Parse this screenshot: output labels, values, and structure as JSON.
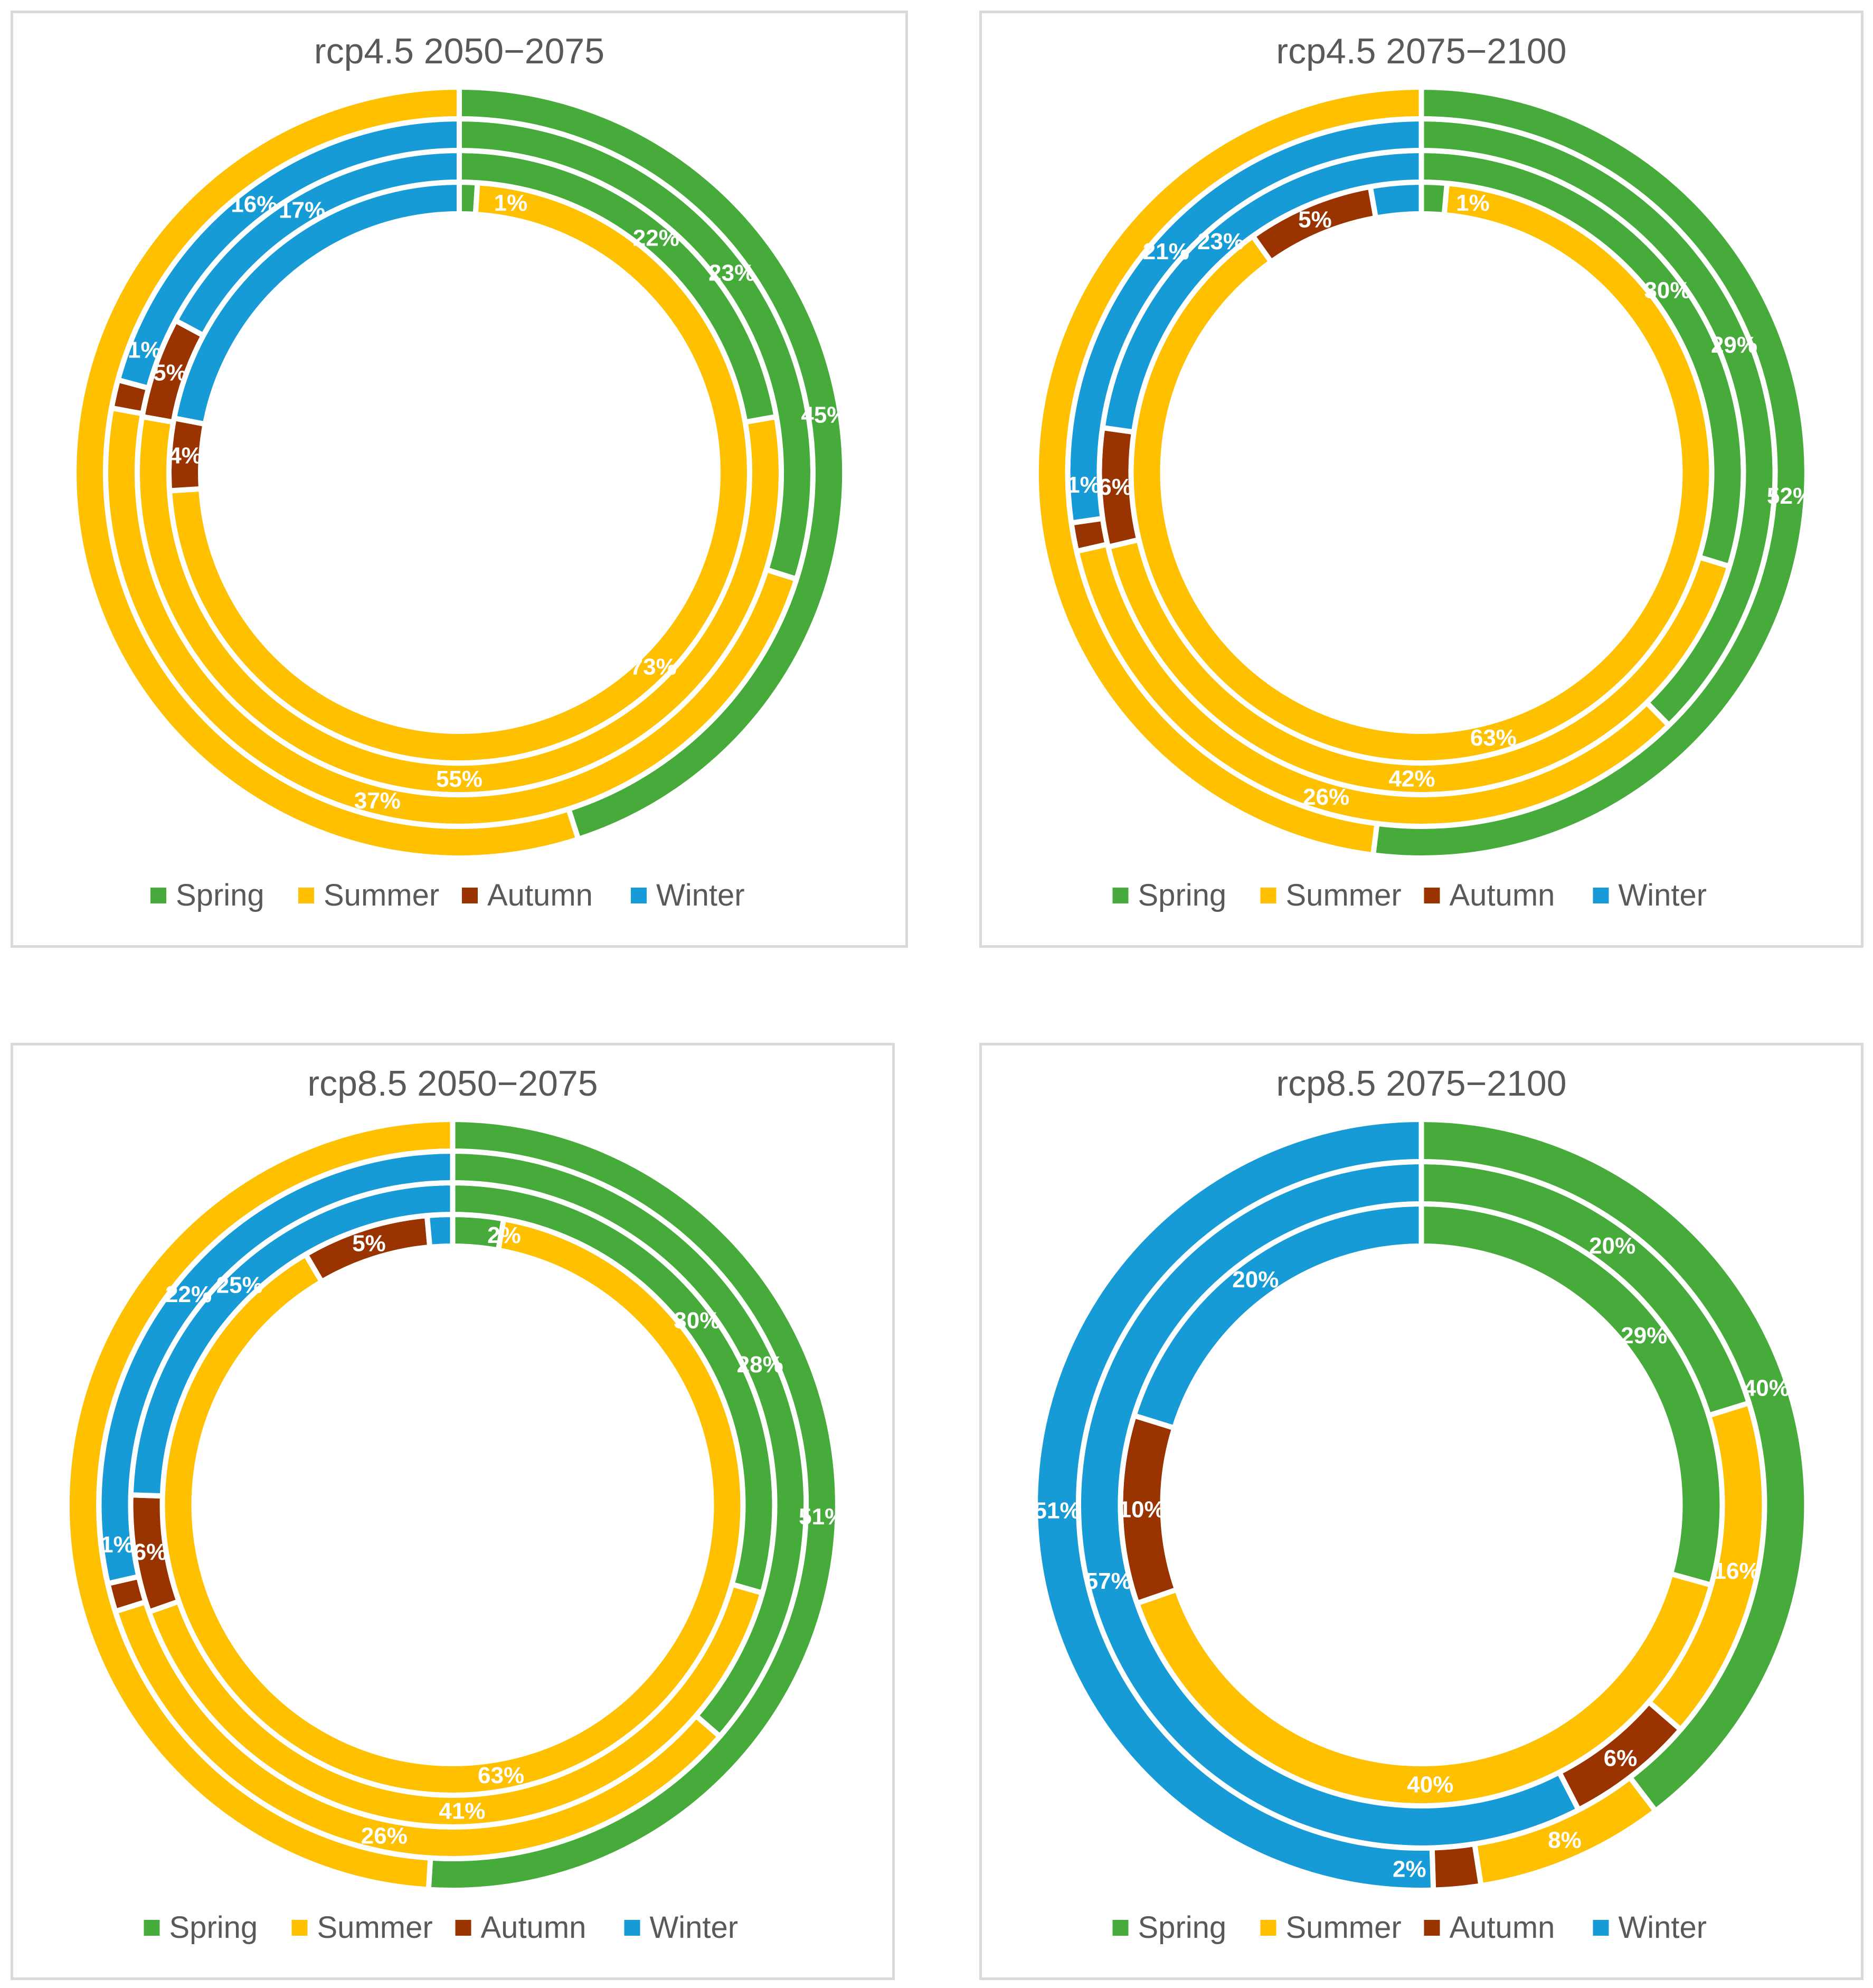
{
  "colors": {
    "Spring": "#46ab3a",
    "Summer": "#ffc000",
    "Autumn": "#993300",
    "Winter": "#179bd7"
  },
  "chart_data": [
    {
      "type": "doughnut",
      "title": "rcp4.5 2050−2075",
      "legend": [
        "Spring",
        "Summer",
        "Autumn",
        "Winter"
      ],
      "legend_position": "bottom",
      "rings": [
        {
          "values": [
            1,
            73,
            4,
            22
          ],
          "labels": [
            "1%",
            "73%",
            "4%",
            ""
          ]
        },
        {
          "values": [
            22,
            55,
            5,
            17
          ],
          "labels": [
            "22%",
            "55%",
            "5%",
            "17%"
          ]
        },
        {
          "values": [
            23,
            37,
            1,
            16
          ],
          "labels": [
            "23%",
            "37%",
            "1%",
            "16%"
          ]
        },
        {
          "values": [
            45,
            55,
            0,
            0
          ],
          "labels": [
            "45%",
            "",
            "",
            ""
          ]
        }
      ]
    },
    {
      "type": "doughnut",
      "title": "rcp4.5 2075−2100",
      "legend": [
        "Spring",
        "Summer",
        "Autumn",
        "Winter"
      ],
      "legend_position": "bottom",
      "rings": [
        {
          "values": [
            1,
            63,
            5,
            2
          ],
          "labels": [
            "1%",
            "63%",
            "5%",
            ""
          ]
        },
        {
          "values": [
            30,
            42,
            6,
            23
          ],
          "labels": [
            "30%",
            "42%",
            "6%",
            "23%"
          ]
        },
        {
          "values": [
            29,
            26,
            1,
            21
          ],
          "labels": [
            "29%",
            "26%",
            "1%",
            "21%"
          ]
        },
        {
          "values": [
            52,
            48,
            0,
            0
          ],
          "labels": [
            "52%",
            "",
            "",
            ""
          ]
        }
      ]
    },
    {
      "type": "doughnut",
      "title": "rcp8.5 2050−2075",
      "legend": [
        "Spring",
        "Summer",
        "Autumn",
        "Winter"
      ],
      "legend_position": "bottom",
      "rings": [
        {
          "values": [
            2,
            63,
            5,
            1
          ],
          "labels": [
            "2%",
            "63%",
            "5%",
            ""
          ]
        },
        {
          "values": [
            30,
            41,
            6,
            25
          ],
          "labels": [
            "30%",
            "41%",
            "6%",
            "25%"
          ]
        },
        {
          "values": [
            28,
            26,
            1,
            22
          ],
          "labels": [
            "28%",
            "26%",
            "1%",
            "22%"
          ]
        },
        {
          "values": [
            51,
            49,
            0,
            0
          ],
          "labels": [
            "51%",
            "",
            "",
            ""
          ]
        }
      ]
    },
    {
      "type": "doughnut",
      "title": "rcp8.5 2075−2100",
      "legend": [
        "Spring",
        "Summer",
        "Autumn",
        "Winter"
      ],
      "legend_position": "bottom",
      "rings": [
        {
          "values": [
            29,
            40,
            10,
            20
          ],
          "labels": [
            "29%",
            "40%",
            "10%",
            "20%"
          ]
        },
        {
          "values": [
            20,
            16,
            6,
            57
          ],
          "labels": [
            "20%",
            "16%",
            "6%",
            "57%"
          ]
        },
        {
          "values": [
            40,
            8,
            2,
            51
          ],
          "labels": [
            "40%",
            "8%",
            "2%",
            "51%"
          ]
        }
      ]
    }
  ]
}
